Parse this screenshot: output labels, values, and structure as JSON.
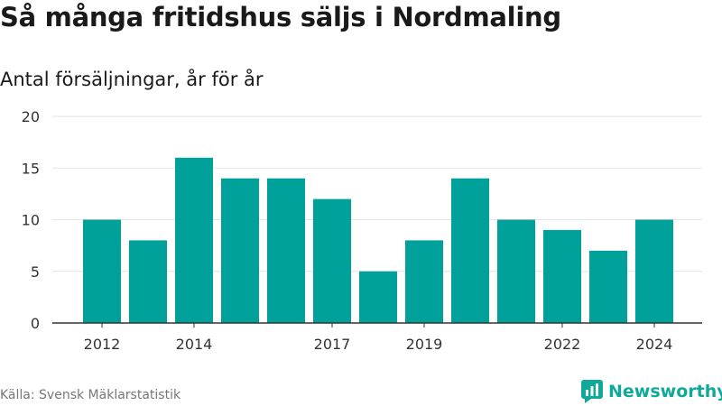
{
  "header": {
    "title": "Så många fritidshus säljs i Nordmaling",
    "subtitle": "Antal försäljningar, år för år"
  },
  "footer": {
    "source": "Källa: Svensk Mäklarstatistik",
    "brand": "Newsworthy",
    "brand_color": "#0fa99a"
  },
  "chart_data": {
    "type": "bar",
    "categories": [
      "2012",
      "2013",
      "2014",
      "2015",
      "2016",
      "2017",
      "2018",
      "2019",
      "2020",
      "2021",
      "2022",
      "2023",
      "2024"
    ],
    "values": [
      10,
      8,
      16,
      14,
      14,
      12,
      5,
      8,
      14,
      10,
      9,
      7,
      10
    ],
    "x_tick_labels": [
      "2012",
      "2014",
      "2017",
      "2019",
      "2022",
      "2024"
    ],
    "y_ticks": [
      0,
      5,
      10,
      15,
      20
    ],
    "ylim": [
      0,
      20
    ],
    "bar_color": "#00a19a",
    "grid": true,
    "title": "Så många fritidshus säljs i Nordmaling",
    "subtitle": "Antal försäljningar, år för år"
  }
}
